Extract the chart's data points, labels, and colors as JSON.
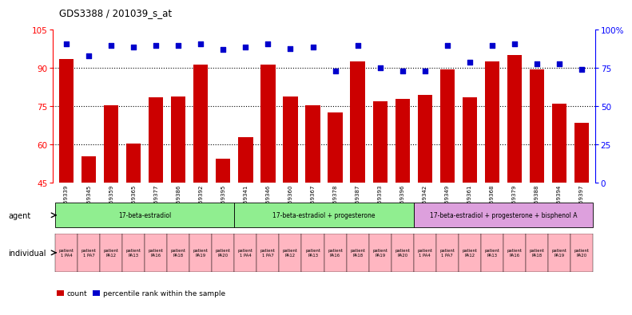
{
  "title": "GDS3388 / 201039_s_at",
  "samples": [
    "GSM259339",
    "GSM259345",
    "GSM259359",
    "GSM259365",
    "GSM259377",
    "GSM259386",
    "GSM259392",
    "GSM259395",
    "GSM259341",
    "GSM259346",
    "GSM259360",
    "GSM259367",
    "GSM259378",
    "GSM259387",
    "GSM259393",
    "GSM259396",
    "GSM259342",
    "GSM259349",
    "GSM259361",
    "GSM259368",
    "GSM259379",
    "GSM259388",
    "GSM259394",
    "GSM259397"
  ],
  "bar_values": [
    93.5,
    55.5,
    75.5,
    60.5,
    78.5,
    79.0,
    91.5,
    54.5,
    63.0,
    91.5,
    79.0,
    75.5,
    72.5,
    92.5,
    77.0,
    78.0,
    79.5,
    89.5,
    78.5,
    92.5,
    95.0,
    89.5,
    76.0,
    68.5
  ],
  "dot_values": [
    91,
    83,
    90,
    89,
    90,
    90,
    91,
    87,
    89,
    91,
    88,
    89,
    73,
    90,
    75,
    73,
    73,
    90,
    79,
    90,
    91,
    78,
    78,
    74
  ],
  "individuals": [
    "patient\n1 PA4",
    "patient\n1 PA7",
    "patient\nPA12",
    "patient\nPA13",
    "patient\nPA16",
    "patient\nPA18",
    "patient\nPA19",
    "patient\nPA20",
    "patient\n1 PA4",
    "patient\n1 PA7",
    "patient\nPA12",
    "patient\nPA13",
    "patient\nPA16",
    "patient\nPA18",
    "patient\nPA19",
    "patient\nPA20",
    "patient\n1 PA4",
    "patient\n1 PA7",
    "patient\nPA12",
    "patient\nPA13",
    "patient\nPA16",
    "patient\nPA18",
    "patient\nPA19",
    "patient\nPA20"
  ],
  "agent_groups": [
    {
      "label": "17-beta-estradiol",
      "start": 0,
      "end": 8,
      "color": "#90EE90"
    },
    {
      "label": "17-beta-estradiol + progesterone",
      "start": 8,
      "end": 16,
      "color": "#90EE90"
    },
    {
      "label": "17-beta-estradiol + progesterone + bisphenol A",
      "start": 16,
      "end": 24,
      "color": "#DDA0DD"
    }
  ],
  "bar_color": "#CC0000",
  "dot_color": "#0000CC",
  "ylim_left": [
    45,
    105
  ],
  "ylim_right": [
    0,
    100
  ],
  "yticks_left": [
    45,
    60,
    75,
    90,
    105
  ],
  "yticks_right": [
    0,
    25,
    50,
    75,
    100
  ],
  "ytick_labels_right": [
    "0",
    "25",
    "50",
    "75",
    "100%"
  ],
  "bar_width": 0.65,
  "background_color": "#ffffff"
}
